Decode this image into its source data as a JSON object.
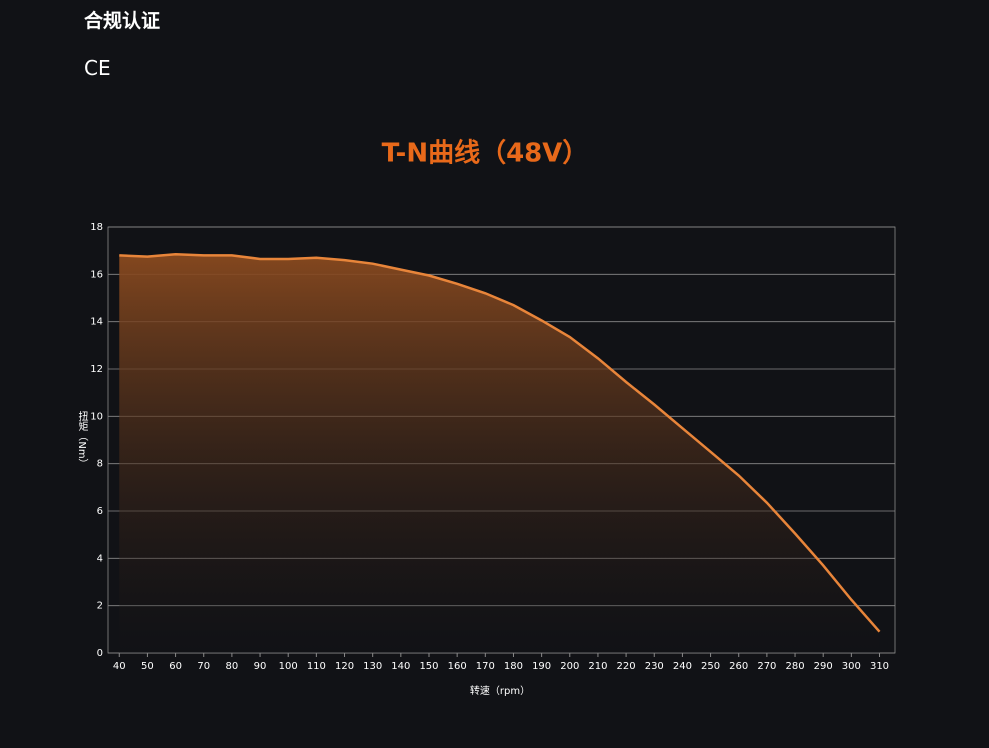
{
  "header": {
    "title": "合规认证",
    "certification": "CE"
  },
  "chart_data": {
    "type": "area-line",
    "title": "T-N曲线（48V）",
    "x_label": "转速（rpm）",
    "y_label": "扭矩（Nm）",
    "x": [
      40,
      50,
      60,
      70,
      80,
      90,
      100,
      110,
      120,
      130,
      140,
      150,
      160,
      170,
      180,
      190,
      200,
      210,
      220,
      230,
      240,
      250,
      260,
      270,
      280,
      290,
      300,
      310
    ],
    "values": [
      16.8,
      16.75,
      16.85,
      16.8,
      16.8,
      16.65,
      16.65,
      16.7,
      16.6,
      16.45,
      16.2,
      15.95,
      15.6,
      15.2,
      14.7,
      14.05,
      13.35,
      12.45,
      11.45,
      10.5,
      9.5,
      8.5,
      7.5,
      6.35,
      5.05,
      3.7,
      2.25,
      0.9
    ],
    "color": "#e8853a",
    "xlim": [
      36,
      315.5
    ],
    "xticks": [
      40,
      50,
      60,
      70,
      80,
      90,
      100,
      110,
      120,
      130,
      140,
      150,
      160,
      170,
      180,
      190,
      200,
      210,
      220,
      230,
      240,
      250,
      260,
      270,
      280,
      290,
      300,
      310
    ],
    "ylim": [
      0,
      18
    ],
    "yticks": [
      0,
      2,
      4,
      6,
      8,
      10,
      12,
      14,
      16,
      18
    ],
    "grid": true
  }
}
